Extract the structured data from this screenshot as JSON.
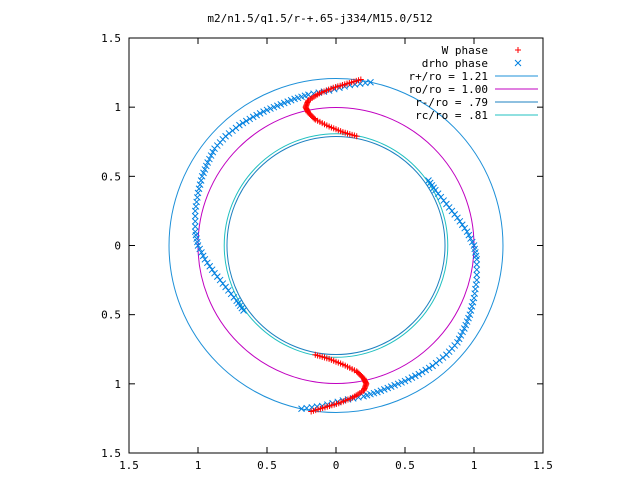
{
  "chart_data": {
    "type": "scatter",
    "title": "m2/n1.5/q1.5/r-+.65-j334/M15.0/512",
    "xlabel": "",
    "ylabel": "",
    "xlim": [
      -1.5,
      1.5
    ],
    "ylim": [
      -1.5,
      1.5
    ],
    "grid": false,
    "legend_position": "top-right",
    "x_tick_labels": [
      "1.5",
      "1",
      "0.5",
      "0",
      "0.5",
      "1",
      "1.5"
    ],
    "y_tick_labels": [
      "1.5",
      "1",
      "0.5",
      "0",
      "0.5",
      "1",
      "1.5"
    ],
    "x_tick_values": [
      -1.5,
      -1,
      -0.5,
      0,
      0.5,
      1,
      1.5
    ],
    "y_tick_values": [
      1.5,
      1,
      0.5,
      0,
      -0.5,
      -1,
      -1.5
    ],
    "series": [
      {
        "name": "W phase",
        "marker": "plus",
        "color": "#ff0000",
        "description": "two S-shaped arms (upper and lower)"
      },
      {
        "name": "drho phase",
        "marker": "cross",
        "color": "#0080e0"
      },
      {
        "name": "r+/ro = 1.21",
        "marker": "line",
        "color": "#1e90d8",
        "radius": 1.21
      },
      {
        "name": "ro/ro = 1.00",
        "marker": "line",
        "color": "#c000c0",
        "radius": 1.0
      },
      {
        "name": "r-/ro = .79",
        "marker": "line",
        "color": "#1d80c0",
        "radius": 0.79
      },
      {
        "name": "rc/ro = .81",
        "marker": "line",
        "color": "#20c0c0",
        "radius": 0.81
      }
    ],
    "w_phase_upper": [
      [
        0.15,
        0.79
      ],
      [
        0.05,
        0.82
      ],
      [
        -0.05,
        0.86
      ],
      [
        -0.15,
        0.91
      ],
      [
        -0.2,
        0.96
      ],
      [
        -0.22,
        1.0
      ],
      [
        -0.2,
        1.05
      ],
      [
        -0.12,
        1.1
      ],
      [
        -0.02,
        1.14
      ],
      [
        0.08,
        1.17
      ],
      [
        0.18,
        1.2
      ]
    ],
    "w_phase_lower": [
      [
        -0.15,
        -0.79
      ],
      [
        -0.05,
        -0.82
      ],
      [
        0.05,
        -0.86
      ],
      [
        0.15,
        -0.91
      ],
      [
        0.2,
        -0.96
      ],
      [
        0.22,
        -1.0
      ],
      [
        0.2,
        -1.05
      ],
      [
        0.12,
        -1.1
      ],
      [
        0.02,
        -1.14
      ],
      [
        -0.08,
        -1.17
      ],
      [
        -0.18,
        -1.2
      ]
    ],
    "drho_upper_arm": [
      [
        0.25,
        1.18
      ],
      [
        0.1,
        1.16
      ],
      [
        -0.05,
        1.12
      ],
      [
        -0.2,
        1.09
      ],
      [
        -0.3,
        1.06
      ],
      [
        -0.4,
        1.02
      ],
      [
        -0.5,
        0.98
      ],
      [
        -0.6,
        0.93
      ],
      [
        -0.7,
        0.87
      ],
      [
        -0.8,
        0.79
      ],
      [
        -0.88,
        0.7
      ],
      [
        -0.93,
        0.6
      ],
      [
        -0.97,
        0.5
      ],
      [
        -1.0,
        0.38
      ],
      [
        -1.02,
        0.25
      ],
      [
        -1.02,
        0.1
      ],
      [
        -1.0,
        0.0
      ],
      [
        -0.95,
        -0.1
      ],
      [
        -0.88,
        -0.2
      ],
      [
        -0.8,
        -0.3
      ],
      [
        -0.72,
        -0.4
      ],
      [
        -0.67,
        -0.47
      ]
    ],
    "drho_lower_arm": [
      [
        -0.25,
        -1.18
      ],
      [
        -0.1,
        -1.16
      ],
      [
        0.05,
        -1.12
      ],
      [
        0.2,
        -1.09
      ],
      [
        0.3,
        -1.06
      ],
      [
        0.4,
        -1.02
      ],
      [
        0.5,
        -0.98
      ],
      [
        0.6,
        -0.93
      ],
      [
        0.7,
        -0.87
      ],
      [
        0.8,
        -0.79
      ],
      [
        0.88,
        -0.7
      ],
      [
        0.93,
        -0.6
      ],
      [
        0.97,
        -0.5
      ],
      [
        1.0,
        -0.38
      ],
      [
        1.02,
        -0.25
      ],
      [
        1.02,
        -0.1
      ],
      [
        1.0,
        0.0
      ],
      [
        0.95,
        0.1
      ],
      [
        0.88,
        0.2
      ],
      [
        0.8,
        0.3
      ],
      [
        0.72,
        0.4
      ],
      [
        0.67,
        0.47
      ]
    ]
  }
}
